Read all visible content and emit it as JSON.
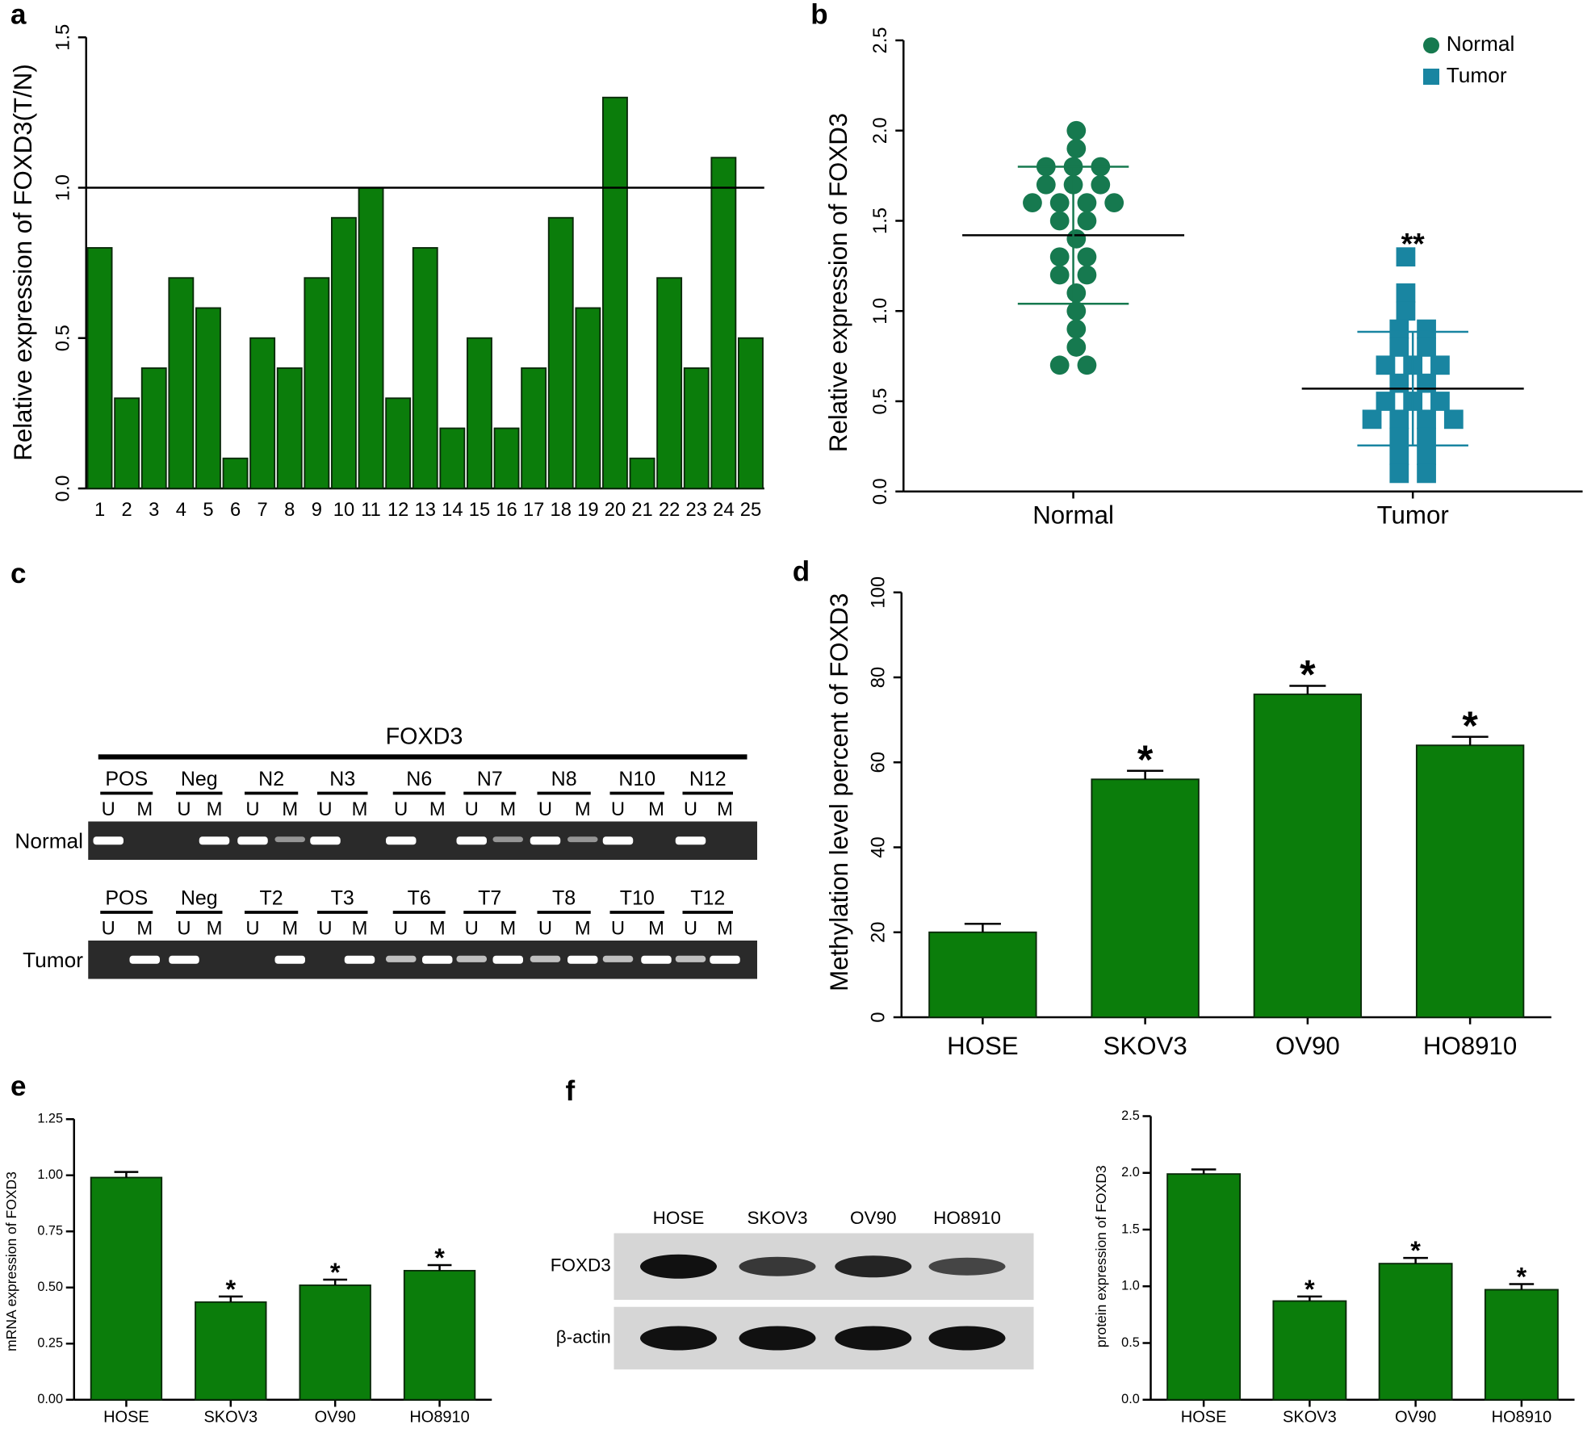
{
  "chart_data": [
    {
      "panel": "a",
      "type": "bar",
      "ylabel": "Relative expression of FOXD3(T/N)",
      "categories": [
        "1",
        "2",
        "3",
        "4",
        "5",
        "6",
        "7",
        "8",
        "9",
        "10",
        "11",
        "12",
        "13",
        "14",
        "15",
        "16",
        "17",
        "18",
        "19",
        "20",
        "21",
        "22",
        "23",
        "24",
        "25"
      ],
      "values": [
        0.8,
        0.3,
        0.4,
        0.7,
        0.6,
        0.1,
        0.5,
        0.4,
        0.7,
        0.9,
        1.0,
        0.3,
        0.8,
        0.2,
        0.5,
        0.2,
        0.4,
        0.9,
        0.6,
        1.3,
        0.1,
        0.7,
        0.4,
        1.1,
        0.5
      ],
      "color": "#0b7d0b",
      "reference_line": 1,
      "ylim": [
        0,
        1.5
      ],
      "yticks": [
        {
          "value": 0,
          "label": "0.0"
        },
        {
          "value": 0.5,
          "label": "0.5"
        },
        {
          "value": 1,
          "label": "1.0"
        },
        {
          "value": 1.5,
          "label": "1.5"
        }
      ]
    },
    {
      "panel": "b",
      "type": "scatter",
      "ylabel": "Relative expression of FOXD3",
      "categories": [
        "Normal",
        "Tumor"
      ],
      "series": [
        {
          "name": "Normal",
          "color": "#16794f",
          "marker": "circle",
          "mean": 1.42,
          "sd": 0.38,
          "values": [
            2.0,
            1.9,
            1.8,
            1.8,
            1.8,
            1.7,
            1.7,
            1.7,
            1.6,
            1.6,
            1.6,
            1.6,
            1.5,
            1.5,
            1.4,
            1.3,
            1.3,
            1.2,
            1.2,
            1.1,
            1.0,
            0.9,
            0.8,
            0.7,
            0.7
          ]
        },
        {
          "name": "Tumor",
          "color": "#1985a1",
          "marker": "square",
          "mean": 0.57,
          "sd": 0.315,
          "annotation": "**",
          "values": [
            1.3,
            1.1,
            1.0,
            0.9,
            0.9,
            0.8,
            0.8,
            0.7,
            0.7,
            0.7,
            0.6,
            0.6,
            0.5,
            0.5,
            0.5,
            0.4,
            0.4,
            0.4,
            0.4,
            0.3,
            0.3,
            0.2,
            0.2,
            0.1,
            0.1
          ]
        }
      ],
      "legend": "upper right",
      "ylim": [
        0,
        2.5
      ],
      "yticks": [
        {
          "value": 0,
          "label": "0.0"
        },
        {
          "value": 0.5,
          "label": "0.5"
        },
        {
          "value": 1,
          "label": "1.0"
        },
        {
          "value": 1.5,
          "label": "1.5"
        },
        {
          "value": 2,
          "label": "2.0"
        },
        {
          "value": 2.5,
          "label": "2.5"
        }
      ]
    },
    {
      "panel": "d",
      "type": "bar",
      "ylabel": "Methylation level percent of FOXD3",
      "categories": [
        "HOSE",
        "SKOV3",
        "OV90",
        "HO8910"
      ],
      "values": [
        20,
        56,
        76,
        64
      ],
      "errors": [
        2,
        2,
        2,
        2
      ],
      "annotations": [
        null,
        "*",
        "*",
        "*"
      ],
      "color": "#0b7d0b",
      "ylim": [
        0,
        100
      ],
      "yticks": [
        0,
        20,
        40,
        60,
        80,
        100
      ]
    },
    {
      "panel": "e",
      "type": "bar",
      "ylabel": "mRNA expression of FOXD3",
      "categories": [
        "HOSE",
        "SKOV3",
        "OV90",
        "HO8910"
      ],
      "values": [
        0.99,
        0.435,
        0.51,
        0.575
      ],
      "errors": [
        0.025,
        0.025,
        0.025,
        0.025
      ],
      "annotations": [
        null,
        "*",
        "*",
        "*"
      ],
      "color": "#0b7d0b",
      "ylim": [
        0,
        1.25
      ],
      "yticks": [
        {
          "value": 0,
          "label": "0.00"
        },
        {
          "value": 0.25,
          "label": "0.25"
        },
        {
          "value": 0.5,
          "label": "0.50"
        },
        {
          "value": 0.75,
          "label": "0.75"
        },
        {
          "value": 1,
          "label": "1.00"
        },
        {
          "value": 1.25,
          "label": "1.25"
        }
      ]
    },
    {
      "type": "bar",
      "ylabel": "protein expression of FOXD3",
      "categories": [
        "HOSE",
        "SKOV3",
        "OV90",
        "HO8910"
      ],
      "values": [
        1.99,
        0.87,
        1.2,
        0.97
      ],
      "errors": [
        0.04,
        0.04,
        0.05,
        0.05
      ],
      "annotations": [
        null,
        "*",
        "*",
        "*"
      ],
      "color": "#0b7d0b",
      "ylim": [
        0,
        2.5
      ],
      "yticks": [
        {
          "value": 0,
          "label": "0.0"
        },
        {
          "value": 0.5,
          "label": "0.5"
        },
        {
          "value": 1,
          "label": "1.0"
        },
        {
          "value": 1.5,
          "label": "1.5"
        },
        {
          "value": 2,
          "label": "2.0"
        },
        {
          "value": 2.5,
          "label": "2.5"
        }
      ]
    }
  ],
  "gels": {
    "c": {
      "panel": "c",
      "title": "FOXD3",
      "sublanes": [
        "U",
        "M"
      ],
      "rows": [
        {
          "label": "Normal",
          "lanes": [
            "POS",
            "Neg",
            "N2",
            "N3",
            "N6",
            "N7",
            "N8",
            "N10",
            "N12"
          ],
          "bands": [
            [
              1,
              0
            ],
            [
              0,
              1
            ],
            [
              1,
              0.5
            ],
            [
              1,
              0
            ],
            [
              1,
              0
            ],
            [
              1,
              0.5
            ],
            [
              1,
              0.5
            ],
            [
              1,
              0
            ],
            [
              1,
              0
            ]
          ]
        },
        {
          "label": "Tumor",
          "lanes": [
            "POS",
            "Neg",
            "T2",
            "T3",
            "T6",
            "T7",
            "T8",
            "T10",
            "T12"
          ],
          "bands": [
            [
              0,
              1
            ],
            [
              1,
              0
            ],
            [
              0,
              1
            ],
            [
              0,
              1
            ],
            [
              0.7,
              1
            ],
            [
              0.7,
              1
            ],
            [
              0.7,
              1
            ],
            [
              0.7,
              1
            ],
            [
              0.7,
              1
            ]
          ]
        }
      ]
    },
    "f": {
      "panel": "f",
      "columns": [
        "HOSE",
        "SKOV3",
        "OV90",
        "HO8910"
      ],
      "rows": [
        {
          "label": "FOXD3",
          "bands": [
            1,
            0.7,
            0.85,
            0.6
          ]
        },
        {
          "label": "β-actin",
          "bands": [
            1,
            1,
            1,
            1
          ]
        }
      ]
    }
  }
}
